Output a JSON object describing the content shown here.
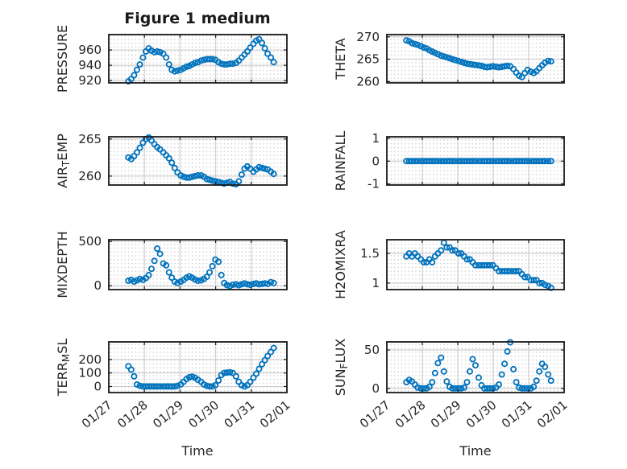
{
  "figure": {
    "title": "Figure 1 medium",
    "xlabel": "Time",
    "marker_color": "#0072BD",
    "axis_color": "#1a1a1a",
    "major_grid_color": "#cfcfcf",
    "minor_dot_color": "#c4c4c4",
    "text_color": "#262626",
    "background_color": "#ffffff"
  },
  "chart_data": {
    "type": "scatter",
    "marker": "open-circle",
    "grid": "major-solid-minor-dotted",
    "xlabel": "Time",
    "x_domain": [
      0,
      5
    ],
    "x_ticks": {
      "values": [
        0,
        1,
        2,
        3,
        4,
        5
      ],
      "labels": [
        "01/27",
        "01/28",
        "01/29",
        "01/30",
        "01/31",
        "02/01"
      ]
    },
    "x_unit": "days since 01/27 00:00",
    "x": [
      0.55,
      0.63,
      0.71,
      0.79,
      0.87,
      0.96,
      1.04,
      1.12,
      1.2,
      1.28,
      1.36,
      1.44,
      1.53,
      1.61,
      1.69,
      1.77,
      1.85,
      1.93,
      2.02,
      2.1,
      2.18,
      2.26,
      2.34,
      2.42,
      2.5,
      2.59,
      2.67,
      2.75,
      2.83,
      2.91,
      2.99,
      3.08,
      3.16,
      3.24,
      3.32,
      3.4,
      3.48,
      3.57,
      3.65,
      3.73,
      3.81,
      3.89,
      3.97,
      4.06,
      4.14,
      4.22,
      4.3,
      4.38,
      4.46,
      4.55,
      4.63
    ],
    "subplots": [
      {
        "id": "pressure",
        "row": 0,
        "col": 0,
        "ylabel": "PRESSURE",
        "ylabel_parts": [
          {
            "text": "PRESSURE",
            "sub": false
          }
        ],
        "yticks": [
          920,
          940,
          960
        ],
        "ylim": [
          917,
          980
        ],
        "y": [
          919,
          922,
          927,
          934,
          941,
          950,
          958,
          962,
          959,
          957,
          958,
          957,
          955,
          950,
          941,
          934,
          932,
          933,
          934,
          936,
          938,
          939,
          941,
          943,
          944,
          946,
          947,
          948,
          948,
          948,
          947,
          944,
          942,
          941,
          941,
          942,
          942,
          943,
          946,
          950,
          954,
          958,
          963,
          968,
          972,
          974,
          969,
          962,
          955,
          950,
          944
        ]
      },
      {
        "id": "theta",
        "row": 0,
        "col": 1,
        "ylabel": "THETA",
        "ylabel_parts": [
          {
            "text": "THETA",
            "sub": false
          }
        ],
        "yticks": [
          260,
          265,
          270
        ],
        "ylim": [
          259.7,
          270.5
        ],
        "y": [
          269.2,
          269.0,
          268.6,
          268.4,
          268.2,
          267.9,
          267.6,
          267.4,
          267.0,
          266.7,
          266.4,
          266.1,
          265.8,
          265.6,
          265.4,
          265.2,
          265.0,
          264.8,
          264.6,
          264.4,
          264.2,
          264.0,
          263.9,
          263.8,
          263.7,
          263.6,
          263.5,
          263.3,
          263.2,
          263.3,
          263.4,
          263.3,
          263.2,
          263.3,
          263.4,
          263.5,
          263.4,
          262.8,
          262.0,
          261.3,
          261.0,
          261.9,
          262.6,
          262.2,
          261.9,
          262.3,
          263.0,
          263.6,
          264.2,
          264.6,
          264.5
        ]
      },
      {
        "id": "airtemp",
        "row": 1,
        "col": 0,
        "ylabel": "AIR_TEMP",
        "ylabel_parts": [
          {
            "text": "AIR",
            "sub": false
          },
          {
            "text": "T",
            "sub": true
          },
          {
            "text": "EMP",
            "sub": false
          }
        ],
        "yticks": [
          260,
          265
        ],
        "ylim": [
          258.8,
          265.3
        ],
        "y": [
          262.5,
          262.3,
          262.7,
          263.2,
          263.8,
          264.5,
          265.0,
          265.2,
          264.8,
          264.3,
          263.9,
          263.6,
          263.2,
          262.8,
          262.4,
          261.8,
          261.1,
          260.5,
          260.1,
          259.9,
          259.8,
          259.8,
          259.9,
          260.0,
          260.1,
          260.1,
          259.9,
          259.6,
          259.5,
          259.4,
          259.3,
          259.2,
          259.1,
          259.0,
          259.1,
          259.2,
          259.0,
          258.9,
          259.3,
          260.2,
          261.0,
          261.3,
          261.0,
          260.6,
          260.9,
          261.2,
          261.1,
          261.0,
          260.9,
          260.6,
          260.3
        ]
      },
      {
        "id": "rainfall",
        "row": 1,
        "col": 1,
        "ylabel": "RAINFALL",
        "ylabel_parts": [
          {
            "text": "RAINFALL",
            "sub": false
          }
        ],
        "yticks": [
          -1,
          0,
          1
        ],
        "ylim": [
          -1.05,
          1.07
        ],
        "y": [
          0,
          0,
          0,
          0,
          0,
          0,
          0,
          0,
          0,
          0,
          0,
          0,
          0,
          0,
          0,
          0,
          0,
          0,
          0,
          0,
          0,
          0,
          0,
          0,
          0,
          0,
          0,
          0,
          0,
          0,
          0,
          0,
          0,
          0,
          0,
          0,
          0,
          0,
          0,
          0,
          0,
          0,
          0,
          0,
          0,
          0,
          0,
          0,
          0,
          0,
          0
        ]
      },
      {
        "id": "mixdepth",
        "row": 2,
        "col": 0,
        "ylabel": "MIXDEPTH",
        "ylabel_parts": [
          {
            "text": "MIXDEPTH",
            "sub": false
          }
        ],
        "yticks": [
          0,
          500
        ],
        "ylim": [
          -45,
          520
        ],
        "y": [
          55,
          65,
          45,
          60,
          75,
          65,
          85,
          120,
          190,
          280,
          420,
          360,
          250,
          230,
          150,
          90,
          45,
          30,
          45,
          65,
          90,
          105,
          90,
          70,
          55,
          60,
          75,
          100,
          150,
          220,
          295,
          270,
          120,
          30,
          5,
          -5,
          10,
          15,
          5,
          15,
          25,
          15,
          10,
          20,
          25,
          15,
          20,
          25,
          20,
          40,
          30
        ]
      },
      {
        "id": "h2omixra",
        "row": 2,
        "col": 1,
        "ylabel": "H2OMIXRA",
        "ylabel_parts": [
          {
            "text": "H2OMIXRA",
            "sub": false
          }
        ],
        "yticks": [
          1,
          1.5
        ],
        "ylim": [
          0.89,
          1.73
        ],
        "y": [
          1.45,
          1.5,
          1.45,
          1.5,
          1.45,
          1.4,
          1.35,
          1.35,
          1.4,
          1.35,
          1.45,
          1.5,
          1.55,
          1.68,
          1.6,
          1.6,
          1.55,
          1.55,
          1.5,
          1.5,
          1.45,
          1.4,
          1.4,
          1.35,
          1.3,
          1.3,
          1.3,
          1.3,
          1.3,
          1.3,
          1.3,
          1.25,
          1.2,
          1.2,
          1.2,
          1.2,
          1.2,
          1.2,
          1.2,
          1.2,
          1.15,
          1.1,
          1.1,
          1.05,
          1.05,
          1.05,
          1.0,
          1.0,
          0.97,
          0.95,
          0.92
        ]
      },
      {
        "id": "terrmsl",
        "row": 3,
        "col": 0,
        "ylabel": "TERR_MSL",
        "ylabel_parts": [
          {
            "text": "TERR",
            "sub": false
          },
          {
            "text": "M",
            "sub": true
          },
          {
            "text": "SL",
            "sub": false
          }
        ],
        "yticks": [
          0,
          100,
          200
        ],
        "ylim": [
          -45,
          330
        ],
        "y": [
          150,
          125,
          75,
          15,
          5,
          0,
          0,
          0,
          0,
          0,
          0,
          0,
          0,
          0,
          0,
          0,
          0,
          5,
          15,
          35,
          55,
          68,
          72,
          65,
          50,
          35,
          15,
          5,
          0,
          0,
          10,
          45,
          85,
          100,
          103,
          105,
          100,
          75,
          35,
          10,
          0,
          10,
          35,
          65,
          95,
          130,
          165,
          195,
          225,
          255,
          285
        ]
      },
      {
        "id": "sunflux",
        "row": 3,
        "col": 1,
        "ylabel": "SUN_FLUX",
        "ylabel_parts": [
          {
            "text": "SUN",
            "sub": false
          },
          {
            "text": "F",
            "sub": true
          },
          {
            "text": "LUX",
            "sub": false
          }
        ],
        "yticks": [
          0,
          50
        ],
        "ylim": [
          -5.5,
          60.5
        ],
        "y": [
          8,
          11,
          9,
          5,
          1,
          0,
          0,
          0,
          2,
          8,
          20,
          33,
          40,
          22,
          9,
          2,
          0,
          0,
          0,
          0,
          1,
          8,
          22,
          38,
          30,
          14,
          4,
          0,
          0,
          0,
          0,
          1,
          5,
          18,
          32,
          48,
          60,
          25,
          8,
          1,
          0,
          0,
          0,
          0,
          2,
          10,
          22,
          32,
          28,
          18,
          10
        ]
      }
    ]
  }
}
